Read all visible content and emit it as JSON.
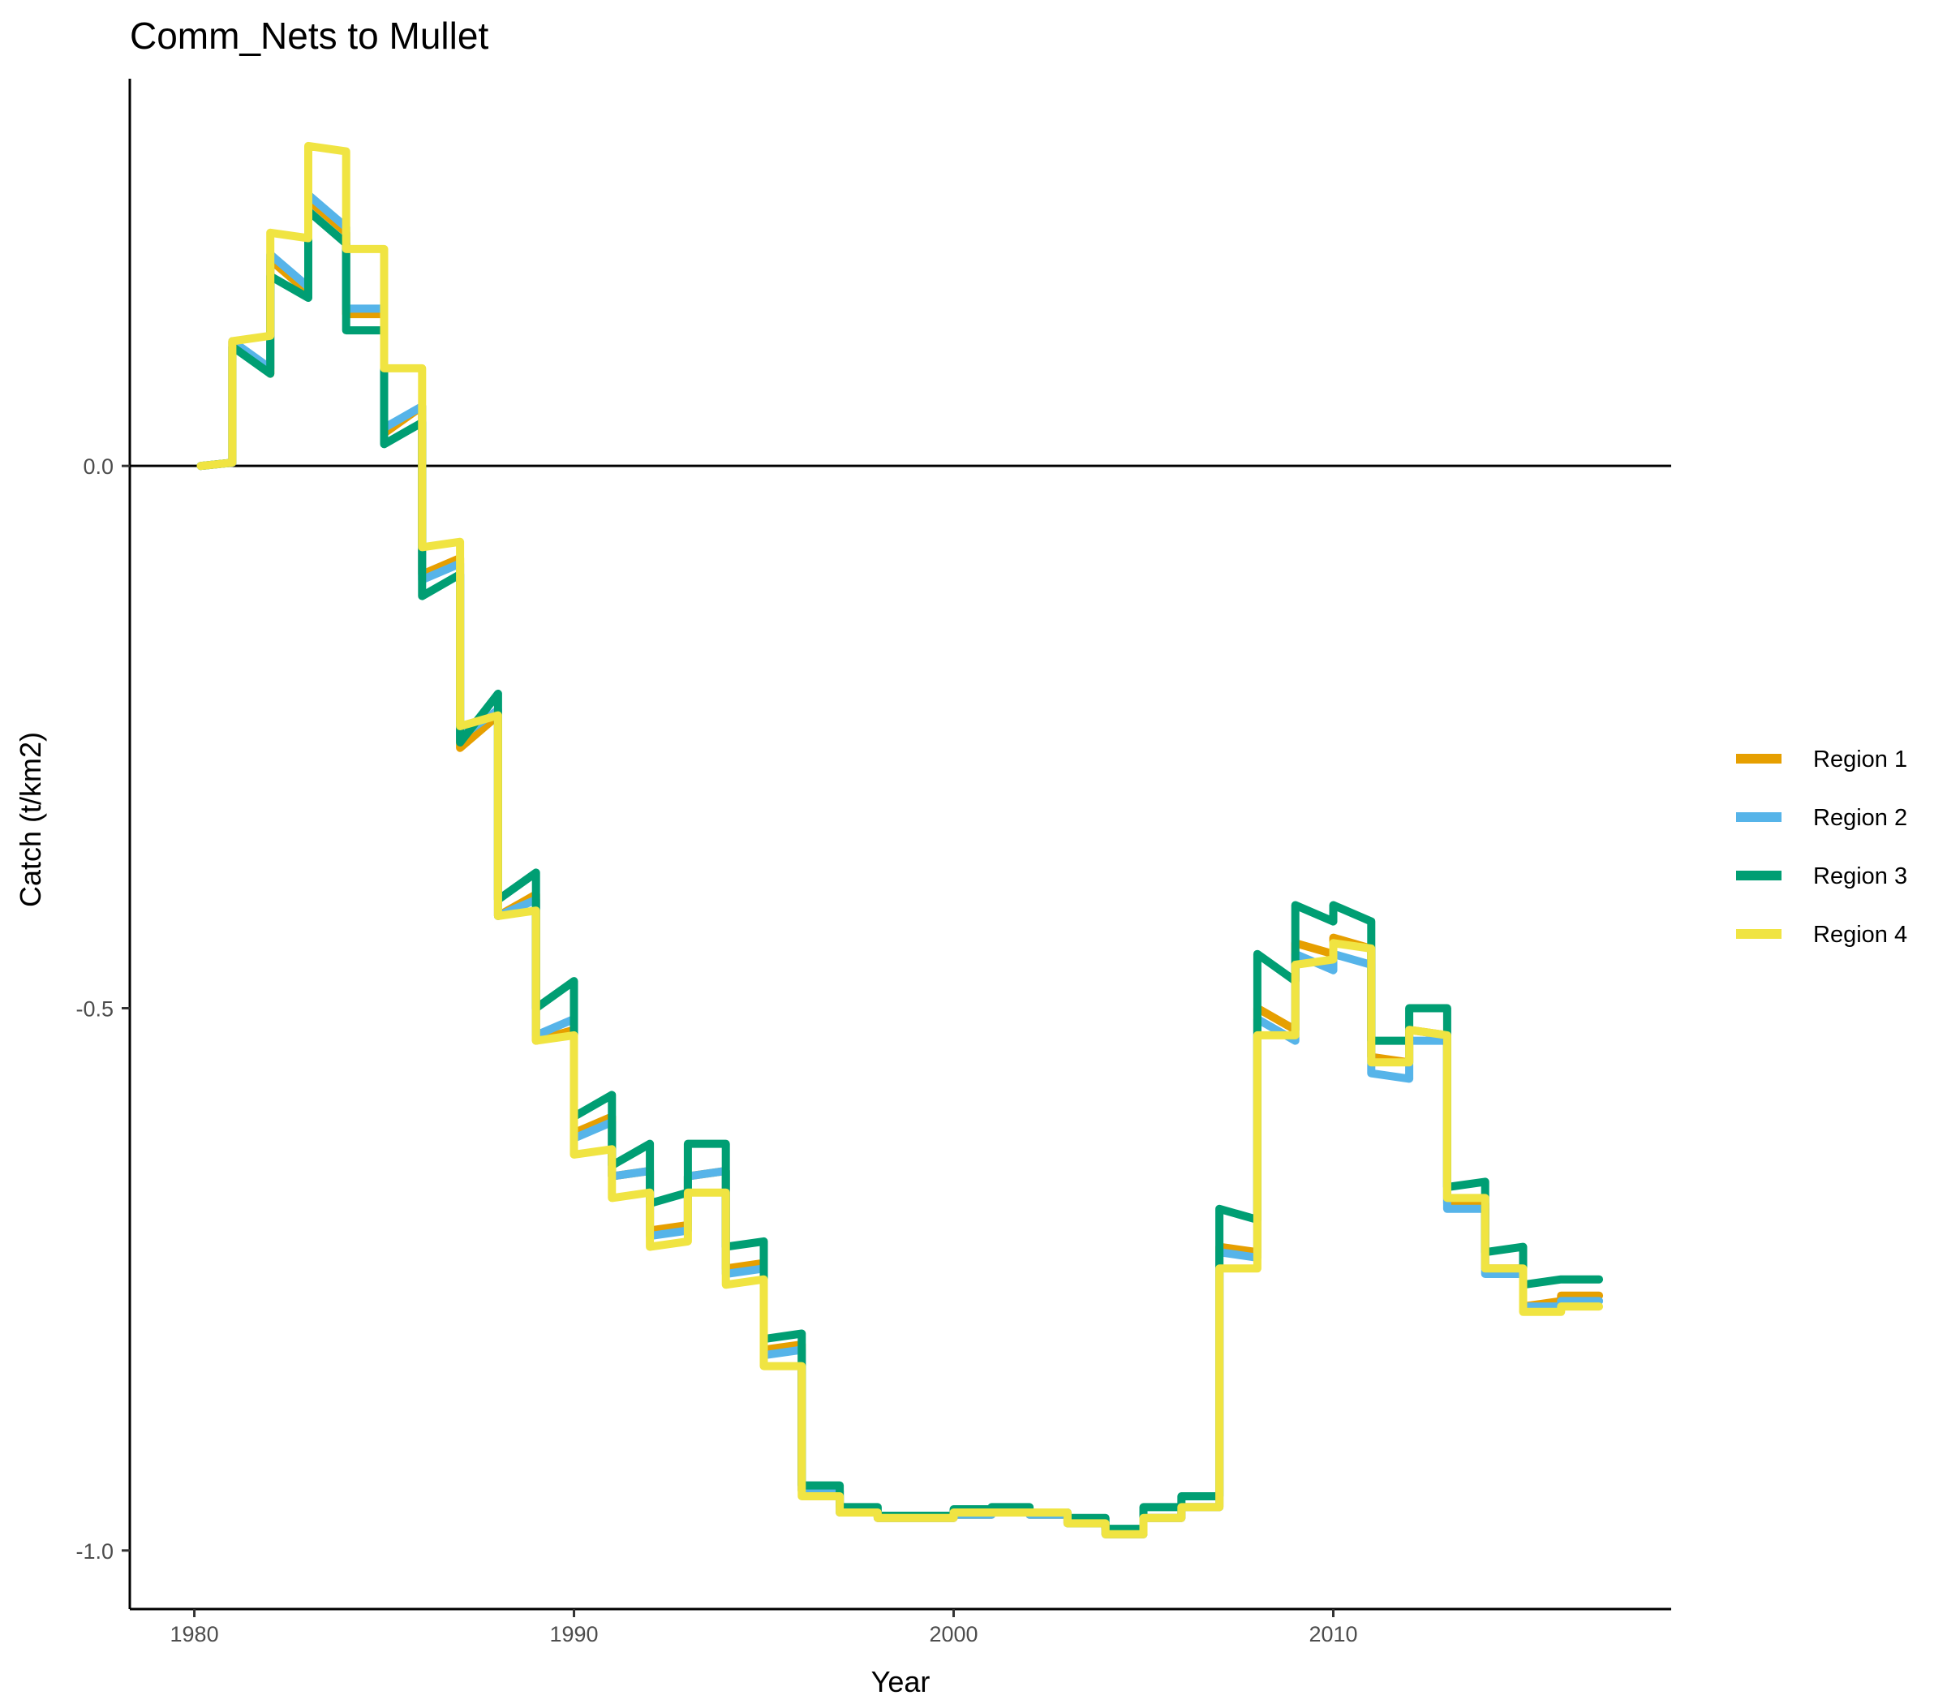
{
  "chart_data": {
    "type": "line",
    "title": "Comm_Nets to Mullet",
    "xlabel": "Year",
    "ylabel": "Catch (t/km2)",
    "xlim": [
      1978.3,
      2018.9
    ],
    "ylim": [
      -1.054,
      0.357
    ],
    "x_ticks": [
      1980,
      1990,
      2000,
      2010
    ],
    "y_ticks": [
      0.0,
      -0.5,
      -1.0
    ],
    "y_tick_labels": [
      "0.0",
      "-0.5",
      "-1.0"
    ],
    "zero_line": true,
    "grid": false,
    "legend_position": "right",
    "step_note": "monthly steps; each year: value at start then value at end",
    "x": [
      1980.17,
      1981.0,
      1981.0,
      1982.0,
      1982.0,
      1983.0,
      1983.0,
      1984.0,
      1984.0,
      1985.0,
      1985.0,
      1986.0,
      1986.0,
      1987.0,
      1987.0,
      1988.0,
      1988.0,
      1989.0,
      1989.0,
      1990.0,
      1990.0,
      1991.0,
      1991.0,
      1992.0,
      1992.0,
      1993.0,
      1993.0,
      1994.0,
      1994.0,
      1995.0,
      1995.0,
      1996.0,
      1996.0,
      1997.0,
      1997.0,
      1998.0,
      1998.0,
      1999.0,
      1999.0,
      2000.0,
      2000.0,
      2001.0,
      2001.0,
      2002.0,
      2002.0,
      2003.0,
      2003.0,
      2004.0,
      2004.0,
      2005.0,
      2005.0,
      2006.0,
      2006.0,
      2007.0,
      2007.0,
      2008.0,
      2008.0,
      2009.0,
      2009.0,
      2010.0,
      2010.0,
      2011.0,
      2011.0,
      2012.0,
      2012.0,
      2013.0,
      2013.0,
      2014.0,
      2014.0,
      2015.0,
      2015.0,
      2016.0,
      2016.0,
      2017.0
    ],
    "series": [
      {
        "name": "Region 1",
        "color": "#E69F00",
        "values": [
          0.0,
          0.003,
          0.115,
          0.085,
          0.19,
          0.16,
          0.245,
          0.215,
          0.14,
          0.14,
          0.03,
          0.055,
          -0.1,
          -0.085,
          -0.26,
          -0.23,
          -0.415,
          -0.395,
          -0.53,
          -0.52,
          -0.615,
          -0.6,
          -0.655,
          -0.65,
          -0.705,
          -0.7,
          -0.655,
          -0.65,
          -0.74,
          -0.735,
          -0.815,
          -0.81,
          -0.945,
          -0.945,
          -0.965,
          -0.965,
          -0.97,
          -0.97,
          -0.97,
          -0.97,
          -0.967,
          -0.967,
          -0.965,
          -0.965,
          -0.967,
          -0.967,
          -0.975,
          -0.975,
          -0.985,
          -0.985,
          -0.97,
          -0.97,
          -0.96,
          -0.96,
          -0.72,
          -0.725,
          -0.5,
          -0.52,
          -0.44,
          -0.45,
          -0.435,
          -0.445,
          -0.545,
          -0.55,
          -0.52,
          -0.525,
          -0.68,
          -0.68,
          -0.74,
          -0.74,
          -0.775,
          -0.77,
          -0.765,
          -0.765
        ]
      },
      {
        "name": "Region 2",
        "color": "#56B4E9",
        "values": [
          0.0,
          0.003,
          0.115,
          0.09,
          0.195,
          0.165,
          0.25,
          0.22,
          0.145,
          0.145,
          0.035,
          0.055,
          -0.105,
          -0.09,
          -0.25,
          -0.225,
          -0.415,
          -0.4,
          -0.525,
          -0.51,
          -0.62,
          -0.605,
          -0.655,
          -0.65,
          -0.71,
          -0.705,
          -0.655,
          -0.65,
          -0.745,
          -0.74,
          -0.82,
          -0.815,
          -0.945,
          -0.945,
          -0.965,
          -0.965,
          -0.97,
          -0.97,
          -0.97,
          -0.97,
          -0.967,
          -0.967,
          -0.965,
          -0.965,
          -0.967,
          -0.967,
          -0.975,
          -0.975,
          -0.985,
          -0.985,
          -0.97,
          -0.97,
          -0.96,
          -0.96,
          -0.725,
          -0.73,
          -0.51,
          -0.53,
          -0.45,
          -0.465,
          -0.45,
          -0.46,
          -0.56,
          -0.565,
          -0.53,
          -0.53,
          -0.685,
          -0.685,
          -0.745,
          -0.745,
          -0.775,
          -0.775,
          -0.77,
          -0.77
        ]
      },
      {
        "name": "Region 3",
        "color": "#009E73",
        "values": [
          0.0,
          0.003,
          0.11,
          0.085,
          0.175,
          0.155,
          0.235,
          0.205,
          0.125,
          0.125,
          0.02,
          0.04,
          -0.12,
          -0.1,
          -0.255,
          -0.21,
          -0.4,
          -0.375,
          -0.5,
          -0.475,
          -0.6,
          -0.58,
          -0.645,
          -0.625,
          -0.68,
          -0.67,
          -0.625,
          -0.625,
          -0.72,
          -0.715,
          -0.805,
          -0.8,
          -0.94,
          -0.94,
          -0.96,
          -0.96,
          -0.968,
          -0.968,
          -0.968,
          -0.968,
          -0.962,
          -0.962,
          -0.96,
          -0.96,
          -0.965,
          -0.965,
          -0.97,
          -0.97,
          -0.98,
          -0.98,
          -0.96,
          -0.96,
          -0.95,
          -0.95,
          -0.685,
          -0.695,
          -0.45,
          -0.475,
          -0.405,
          -0.42,
          -0.405,
          -0.42,
          -0.53,
          -0.53,
          -0.5,
          -0.5,
          -0.665,
          -0.66,
          -0.725,
          -0.72,
          -0.755,
          -0.75,
          -0.75,
          -0.75
        ]
      },
      {
        "name": "Region 4",
        "color": "#F0E442",
        "values": [
          0.0,
          0.003,
          0.115,
          0.12,
          0.215,
          0.21,
          0.295,
          0.29,
          0.2,
          0.2,
          0.09,
          0.09,
          -0.075,
          -0.07,
          -0.24,
          -0.23,
          -0.415,
          -0.41,
          -0.53,
          -0.525,
          -0.635,
          -0.63,
          -0.675,
          -0.67,
          -0.72,
          -0.715,
          -0.67,
          -0.67,
          -0.755,
          -0.75,
          -0.83,
          -0.83,
          -0.95,
          -0.95,
          -0.965,
          -0.965,
          -0.97,
          -0.97,
          -0.97,
          -0.97,
          -0.965,
          -0.965,
          -0.965,
          -0.965,
          -0.965,
          -0.965,
          -0.975,
          -0.975,
          -0.985,
          -0.985,
          -0.97,
          -0.97,
          -0.96,
          -0.96,
          -0.74,
          -0.74,
          -0.525,
          -0.525,
          -0.46,
          -0.455,
          -0.44,
          -0.445,
          -0.55,
          -0.55,
          -0.52,
          -0.525,
          -0.675,
          -0.675,
          -0.74,
          -0.74,
          -0.78,
          -0.78,
          -0.775,
          -0.775
        ]
      }
    ]
  }
}
